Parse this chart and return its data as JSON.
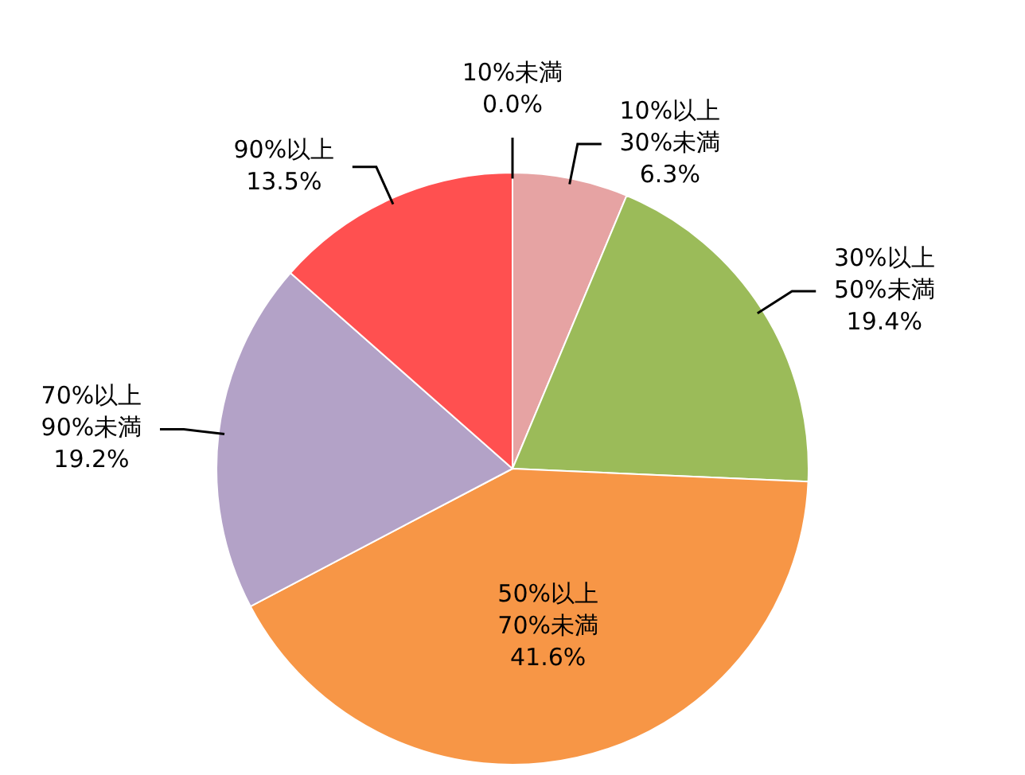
{
  "chart_data": {
    "type": "pie",
    "categories": [
      "10%未満",
      "10%以上\n30%未満",
      "30%以上\n50%未満",
      "50%以上\n70%未満",
      "70%以上\n90%未満",
      "90%以上"
    ],
    "values": [
      0.0,
      6.3,
      19.4,
      41.6,
      19.2,
      13.5
    ],
    "value_labels": [
      "0.0%",
      "6.3%",
      "19.4%",
      "41.6%",
      "19.2%",
      "13.5%"
    ],
    "colors": [
      "#4f81bd",
      "#e6a3a3",
      "#9bbb59",
      "#f79646",
      "#b3a2c7",
      "#ff5050"
    ],
    "legend": false
  }
}
